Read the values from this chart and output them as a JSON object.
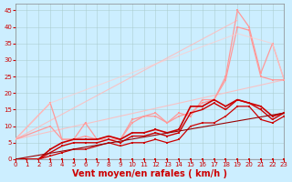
{
  "background_color": "#cceeff",
  "grid_color": "#aacccc",
  "xlabel": "Vent moyen/en rafales ( km/h )",
  "xlabel_color": "#cc0000",
  "xlabel_fontsize": 7,
  "xtick_color": "#cc0000",
  "ytick_color": "#cc0000",
  "xlim": [
    0,
    23
  ],
  "ylim": [
    0,
    47
  ],
  "yticks": [
    0,
    5,
    10,
    15,
    20,
    25,
    30,
    35,
    40,
    45
  ],
  "xticks": [
    0,
    1,
    2,
    3,
    4,
    5,
    6,
    7,
    8,
    9,
    10,
    11,
    12,
    13,
    14,
    15,
    16,
    17,
    18,
    19,
    20,
    21,
    22,
    23
  ],
  "lines": [
    {
      "x": [
        0,
        23
      ],
      "y": [
        6,
        24
      ],
      "color": "#ffbbbb",
      "alpha": 0.85,
      "lw": 0.8,
      "marker": null,
      "ms": 0
    },
    {
      "x": [
        0,
        19
      ],
      "y": [
        6,
        42
      ],
      "color": "#ffbbbb",
      "alpha": 0.85,
      "lw": 0.8,
      "marker": null,
      "ms": 0
    },
    {
      "x": [
        0,
        3,
        4,
        5,
        6,
        7,
        8,
        9,
        10,
        11,
        12,
        13,
        14,
        15,
        16,
        17,
        18,
        19,
        20,
        21,
        22,
        23
      ],
      "y": [
        6,
        10,
        6,
        6,
        7,
        6,
        6,
        6,
        11,
        13,
        13,
        11,
        13,
        14,
        17,
        18,
        24,
        40,
        39,
        25,
        24,
        24
      ],
      "color": "#ff9999",
      "alpha": 1.0,
      "lw": 0.9,
      "marker": "s",
      "ms": 1.5
    },
    {
      "x": [
        0,
        3,
        4,
        5,
        6,
        7,
        8,
        9,
        10,
        11,
        12,
        13,
        14,
        15,
        16,
        17,
        18,
        19,
        20,
        21,
        22,
        23
      ],
      "y": [
        6,
        17,
        6,
        6,
        11,
        6,
        7,
        6,
        12,
        13,
        14,
        11,
        14,
        13,
        18,
        18,
        25,
        45,
        40,
        26,
        35,
        24
      ],
      "color": "#ff9999",
      "alpha": 1.0,
      "lw": 0.9,
      "marker": "s",
      "ms": 1.5
    },
    {
      "x": [
        0,
        3,
        19,
        22,
        23
      ],
      "y": [
        6,
        17,
        38,
        35,
        24
      ],
      "color": "#ffcccc",
      "alpha": 0.7,
      "lw": 0.8,
      "marker": null,
      "ms": 0
    },
    {
      "x": [
        0,
        1,
        2,
        3,
        4,
        5,
        6,
        7,
        8,
        9,
        10,
        11,
        12,
        13,
        14,
        15,
        16,
        17,
        18,
        19,
        20,
        21,
        22,
        23
      ],
      "y": [
        0,
        0,
        0,
        0,
        0,
        0,
        0,
        0,
        0,
        0,
        0,
        0,
        0,
        0,
        0,
        0,
        0,
        0,
        0,
        0,
        0,
        0,
        0,
        0
      ],
      "color": "#cc0000",
      "alpha": 1.0,
      "lw": 0.8,
      "marker": "s",
      "ms": 1.5
    },
    {
      "x": [
        0,
        1,
        2,
        3,
        4,
        5,
        6,
        7,
        8,
        9,
        10,
        11,
        12,
        13,
        14,
        15,
        16,
        17,
        18,
        19,
        20,
        21,
        22,
        23
      ],
      "y": [
        0,
        0,
        0,
        1,
        2,
        3,
        3,
        4,
        5,
        4,
        5,
        5,
        6,
        5,
        6,
        10,
        11,
        11,
        13,
        16,
        16,
        12,
        11,
        13
      ],
      "color": "#cc0000",
      "alpha": 1.0,
      "lw": 0.9,
      "marker": "s",
      "ms": 1.5
    },
    {
      "x": [
        0,
        1,
        2,
        3,
        4,
        5,
        6,
        7,
        8,
        9,
        10,
        11,
        12,
        13,
        14,
        15,
        16,
        17,
        18,
        19,
        20,
        21,
        22,
        23
      ],
      "y": [
        0,
        0,
        0,
        2,
        4,
        5,
        5,
        5,
        6,
        5,
        7,
        7,
        8,
        7,
        8,
        14,
        15,
        17,
        15,
        18,
        17,
        15,
        12,
        14
      ],
      "color": "#cc0000",
      "alpha": 1.0,
      "lw": 1.0,
      "marker": "s",
      "ms": 1.5
    },
    {
      "x": [
        0,
        1,
        2,
        3,
        4,
        5,
        6,
        7,
        8,
        9,
        10,
        11,
        12,
        13,
        14,
        15,
        16,
        17,
        18,
        19,
        20,
        21,
        22,
        23
      ],
      "y": [
        0,
        0,
        0,
        3,
        5,
        6,
        6,
        6,
        7,
        6,
        8,
        8,
        9,
        8,
        9,
        16,
        16,
        18,
        16,
        18,
        17,
        16,
        13,
        14
      ],
      "color": "#cc0000",
      "alpha": 1.0,
      "lw": 1.2,
      "marker": "s",
      "ms": 1.5
    },
    {
      "x": [
        0,
        23
      ],
      "y": [
        0,
        14
      ],
      "color": "#990000",
      "alpha": 1.0,
      "lw": 0.8,
      "marker": null,
      "ms": 0
    }
  ]
}
